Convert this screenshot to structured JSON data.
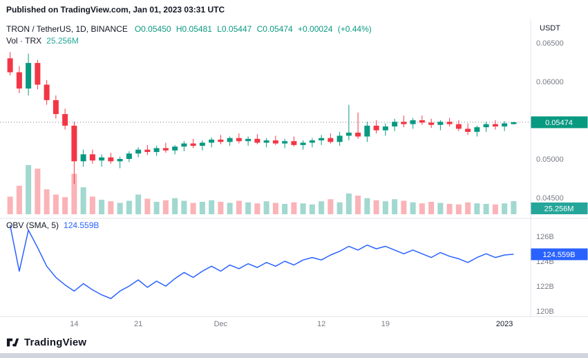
{
  "published_bar": {
    "text": "Published on TradingView.com, Jan 01, 2023 03:31 UTC"
  },
  "legend": {
    "symbol": "TRON / TetherUS, 1D, BINANCE",
    "ohlc": "O0.05450 H0.05481 L0.05447 C0.05474 +0.00024 (+0.44%)",
    "volume_label": "Vol · TRX",
    "volume_value": "25.256M",
    "obv_label": "OBV (SMA, 5)",
    "obv_value": "124.559B"
  },
  "footer": {
    "brand": "TradingView"
  },
  "colors": {
    "up": "#089981",
    "down": "#f23645",
    "obv": "#2962ff",
    "axis_text": "#787b86",
    "dark_text": "#131722",
    "separator": "#e0e3eb",
    "price_line": "#787b86",
    "price_box": "#089981",
    "volume_box": "#26a69a",
    "obv_box": "#2962ff"
  },
  "chart_data": {
    "type": "candlestick",
    "title": "TRON / TetherUS, 1D, BINANCE",
    "symbol": "TRON / TetherUS",
    "interval": "1D",
    "exchange": "BINANCE",
    "quote_unit": "USDT",
    "last": {
      "open": 0.0545,
      "high": 0.05481,
      "low": 0.05447,
      "close": 0.05474,
      "change": 0.00024,
      "change_pct": 0.44
    },
    "legend_volume": "25.256M",
    "legend_obv": "124.559B",
    "price_range": [
      0.0445,
      0.0655
    ],
    "obv_range_b": [
      120,
      127
    ],
    "candles": [
      [
        0.063,
        0.0638,
        0.0608,
        0.0612
      ],
      [
        0.0612,
        0.062,
        0.0585,
        0.0591
      ],
      [
        0.0591,
        0.0636,
        0.0582,
        0.0624
      ],
      [
        0.0624,
        0.0628,
        0.059,
        0.0596
      ],
      [
        0.0596,
        0.0602,
        0.057,
        0.0576
      ],
      [
        0.0576,
        0.0582,
        0.0552,
        0.0558
      ],
      [
        0.0558,
        0.0565,
        0.0538,
        0.0543
      ],
      [
        0.0543,
        0.0548,
        0.0468,
        0.0497
      ],
      [
        0.0497,
        0.0512,
        0.049,
        0.0506
      ],
      [
        0.0506,
        0.0512,
        0.0494,
        0.0498
      ],
      [
        0.0498,
        0.0506,
        0.049,
        0.0502
      ],
      [
        0.0502,
        0.0508,
        0.0494,
        0.0497
      ],
      [
        0.0497,
        0.0503,
        0.0488,
        0.05
      ],
      [
        0.05,
        0.051,
        0.0496,
        0.0507
      ],
      [
        0.0507,
        0.0515,
        0.0502,
        0.0512
      ],
      [
        0.0512,
        0.0518,
        0.0505,
        0.0509
      ],
      [
        0.0509,
        0.0517,
        0.0504,
        0.0514
      ],
      [
        0.0514,
        0.0521,
        0.0508,
        0.0511
      ],
      [
        0.0511,
        0.0518,
        0.0506,
        0.0516
      ],
      [
        0.0516,
        0.0523,
        0.051,
        0.052
      ],
      [
        0.052,
        0.0526,
        0.0514,
        0.0517
      ],
      [
        0.0517,
        0.0524,
        0.0511,
        0.0521
      ],
      [
        0.0521,
        0.0528,
        0.0515,
        0.0525
      ],
      [
        0.0525,
        0.0531,
        0.0519,
        0.0522
      ],
      [
        0.0522,
        0.0529,
        0.0517,
        0.0527
      ],
      [
        0.0527,
        0.0533,
        0.052,
        0.0523
      ],
      [
        0.0523,
        0.0529,
        0.0517,
        0.0526
      ],
      [
        0.0526,
        0.0532,
        0.0519,
        0.0521
      ],
      [
        0.0521,
        0.0527,
        0.0515,
        0.0524
      ],
      [
        0.0524,
        0.053,
        0.0518,
        0.052
      ],
      [
        0.052,
        0.0526,
        0.0514,
        0.0523
      ],
      [
        0.0523,
        0.0529,
        0.0516,
        0.0518
      ],
      [
        0.0518,
        0.0524,
        0.0512,
        0.0521
      ],
      [
        0.0521,
        0.0527,
        0.0515,
        0.0524
      ],
      [
        0.0524,
        0.0531,
        0.0518,
        0.0527
      ],
      [
        0.0527,
        0.0533,
        0.052,
        0.0522
      ],
      [
        0.0522,
        0.0535,
        0.0517,
        0.053
      ],
      [
        0.053,
        0.057,
        0.0524,
        0.0534
      ],
      [
        0.0534,
        0.056,
        0.0526,
        0.0529
      ],
      [
        0.0529,
        0.0548,
        0.0522,
        0.0543
      ],
      [
        0.0543,
        0.055,
        0.0533,
        0.0537
      ],
      [
        0.0537,
        0.0546,
        0.053,
        0.0542
      ],
      [
        0.0542,
        0.0552,
        0.0536,
        0.0548
      ],
      [
        0.0548,
        0.0556,
        0.0541,
        0.0545
      ],
      [
        0.0545,
        0.0553,
        0.0539,
        0.055
      ],
      [
        0.055,
        0.0556,
        0.0544,
        0.0547
      ],
      [
        0.0547,
        0.0552,
        0.054,
        0.0544
      ],
      [
        0.0544,
        0.055,
        0.0537,
        0.0548
      ],
      [
        0.0548,
        0.0553,
        0.0542,
        0.0545
      ],
      [
        0.0545,
        0.055,
        0.0536,
        0.0539
      ],
      [
        0.0539,
        0.0546,
        0.0531,
        0.0535
      ],
      [
        0.0535,
        0.0543,
        0.0529,
        0.0541
      ],
      [
        0.0541,
        0.0548,
        0.0535,
        0.0545
      ],
      [
        0.0545,
        0.055,
        0.0538,
        0.0542
      ],
      [
        0.0542,
        0.0549,
        0.0536,
        0.0546
      ],
      [
        0.0545,
        0.05481,
        0.05447,
        0.05474
      ]
    ],
    "volumes_m": [
      34,
      55,
      95,
      88,
      48,
      38,
      33,
      78,
      52,
      34,
      28,
      25,
      22,
      26,
      38,
      30,
      24,
      27,
      31,
      26,
      22,
      24,
      27,
      24,
      22,
      26,
      23,
      21,
      25,
      22,
      20,
      23,
      21,
      19,
      25,
      29,
      23,
      40,
      36,
      31,
      27,
      25,
      29,
      26,
      23,
      21,
      24,
      22,
      20,
      19,
      23,
      21,
      20,
      19,
      21,
      25.256
    ],
    "obv_b": [
      126.9,
      123.2,
      126.5,
      125.1,
      123.6,
      122.7,
      122.1,
      121.6,
      122.2,
      121.7,
      121.3,
      121.0,
      121.6,
      122.0,
      122.5,
      121.9,
      122.4,
      122.0,
      122.6,
      123.1,
      122.7,
      123.2,
      123.6,
      123.2,
      123.7,
      123.4,
      123.8,
      123.5,
      123.9,
      123.6,
      124.0,
      123.7,
      124.1,
      124.3,
      124.1,
      124.5,
      124.8,
      125.2,
      124.9,
      125.3,
      125.0,
      125.2,
      124.9,
      124.6,
      124.9,
      124.6,
      124.3,
      124.7,
      124.4,
      124.2,
      123.9,
      124.3,
      124.6,
      124.3,
      124.5,
      124.559
    ],
    "price_axis": {
      "unit": "USDT",
      "ticks": [
        {
          "label": "0.06500",
          "value": 0.065
        },
        {
          "label": "0.06000",
          "value": 0.06
        },
        {
          "label": "0.05000",
          "value": 0.05
        },
        {
          "label": "0.04500",
          "value": 0.045
        }
      ],
      "last_label": "0.05474",
      "last_value": 0.05474
    },
    "volume_axis": {
      "last_label": "25.256M",
      "last_value_m": 25.256
    },
    "obv_axis": {
      "ticks": [
        {
          "label": "126B",
          "value": 126
        },
        {
          "label": "124B",
          "value": 124
        },
        {
          "label": "122B",
          "value": 122
        },
        {
          "label": "120B",
          "value": 120
        }
      ],
      "last_label": "124.559B",
      "last_value": 124.559
    },
    "time_axis": {
      "ticks": [
        {
          "label": "14",
          "index": 7
        },
        {
          "label": "21",
          "index": 14
        },
        {
          "label": "Dec",
          "index": 23
        },
        {
          "label": "12",
          "index": 34
        },
        {
          "label": "19",
          "index": 41
        },
        {
          "label": "2023",
          "index": 54,
          "strong": true
        }
      ]
    }
  }
}
